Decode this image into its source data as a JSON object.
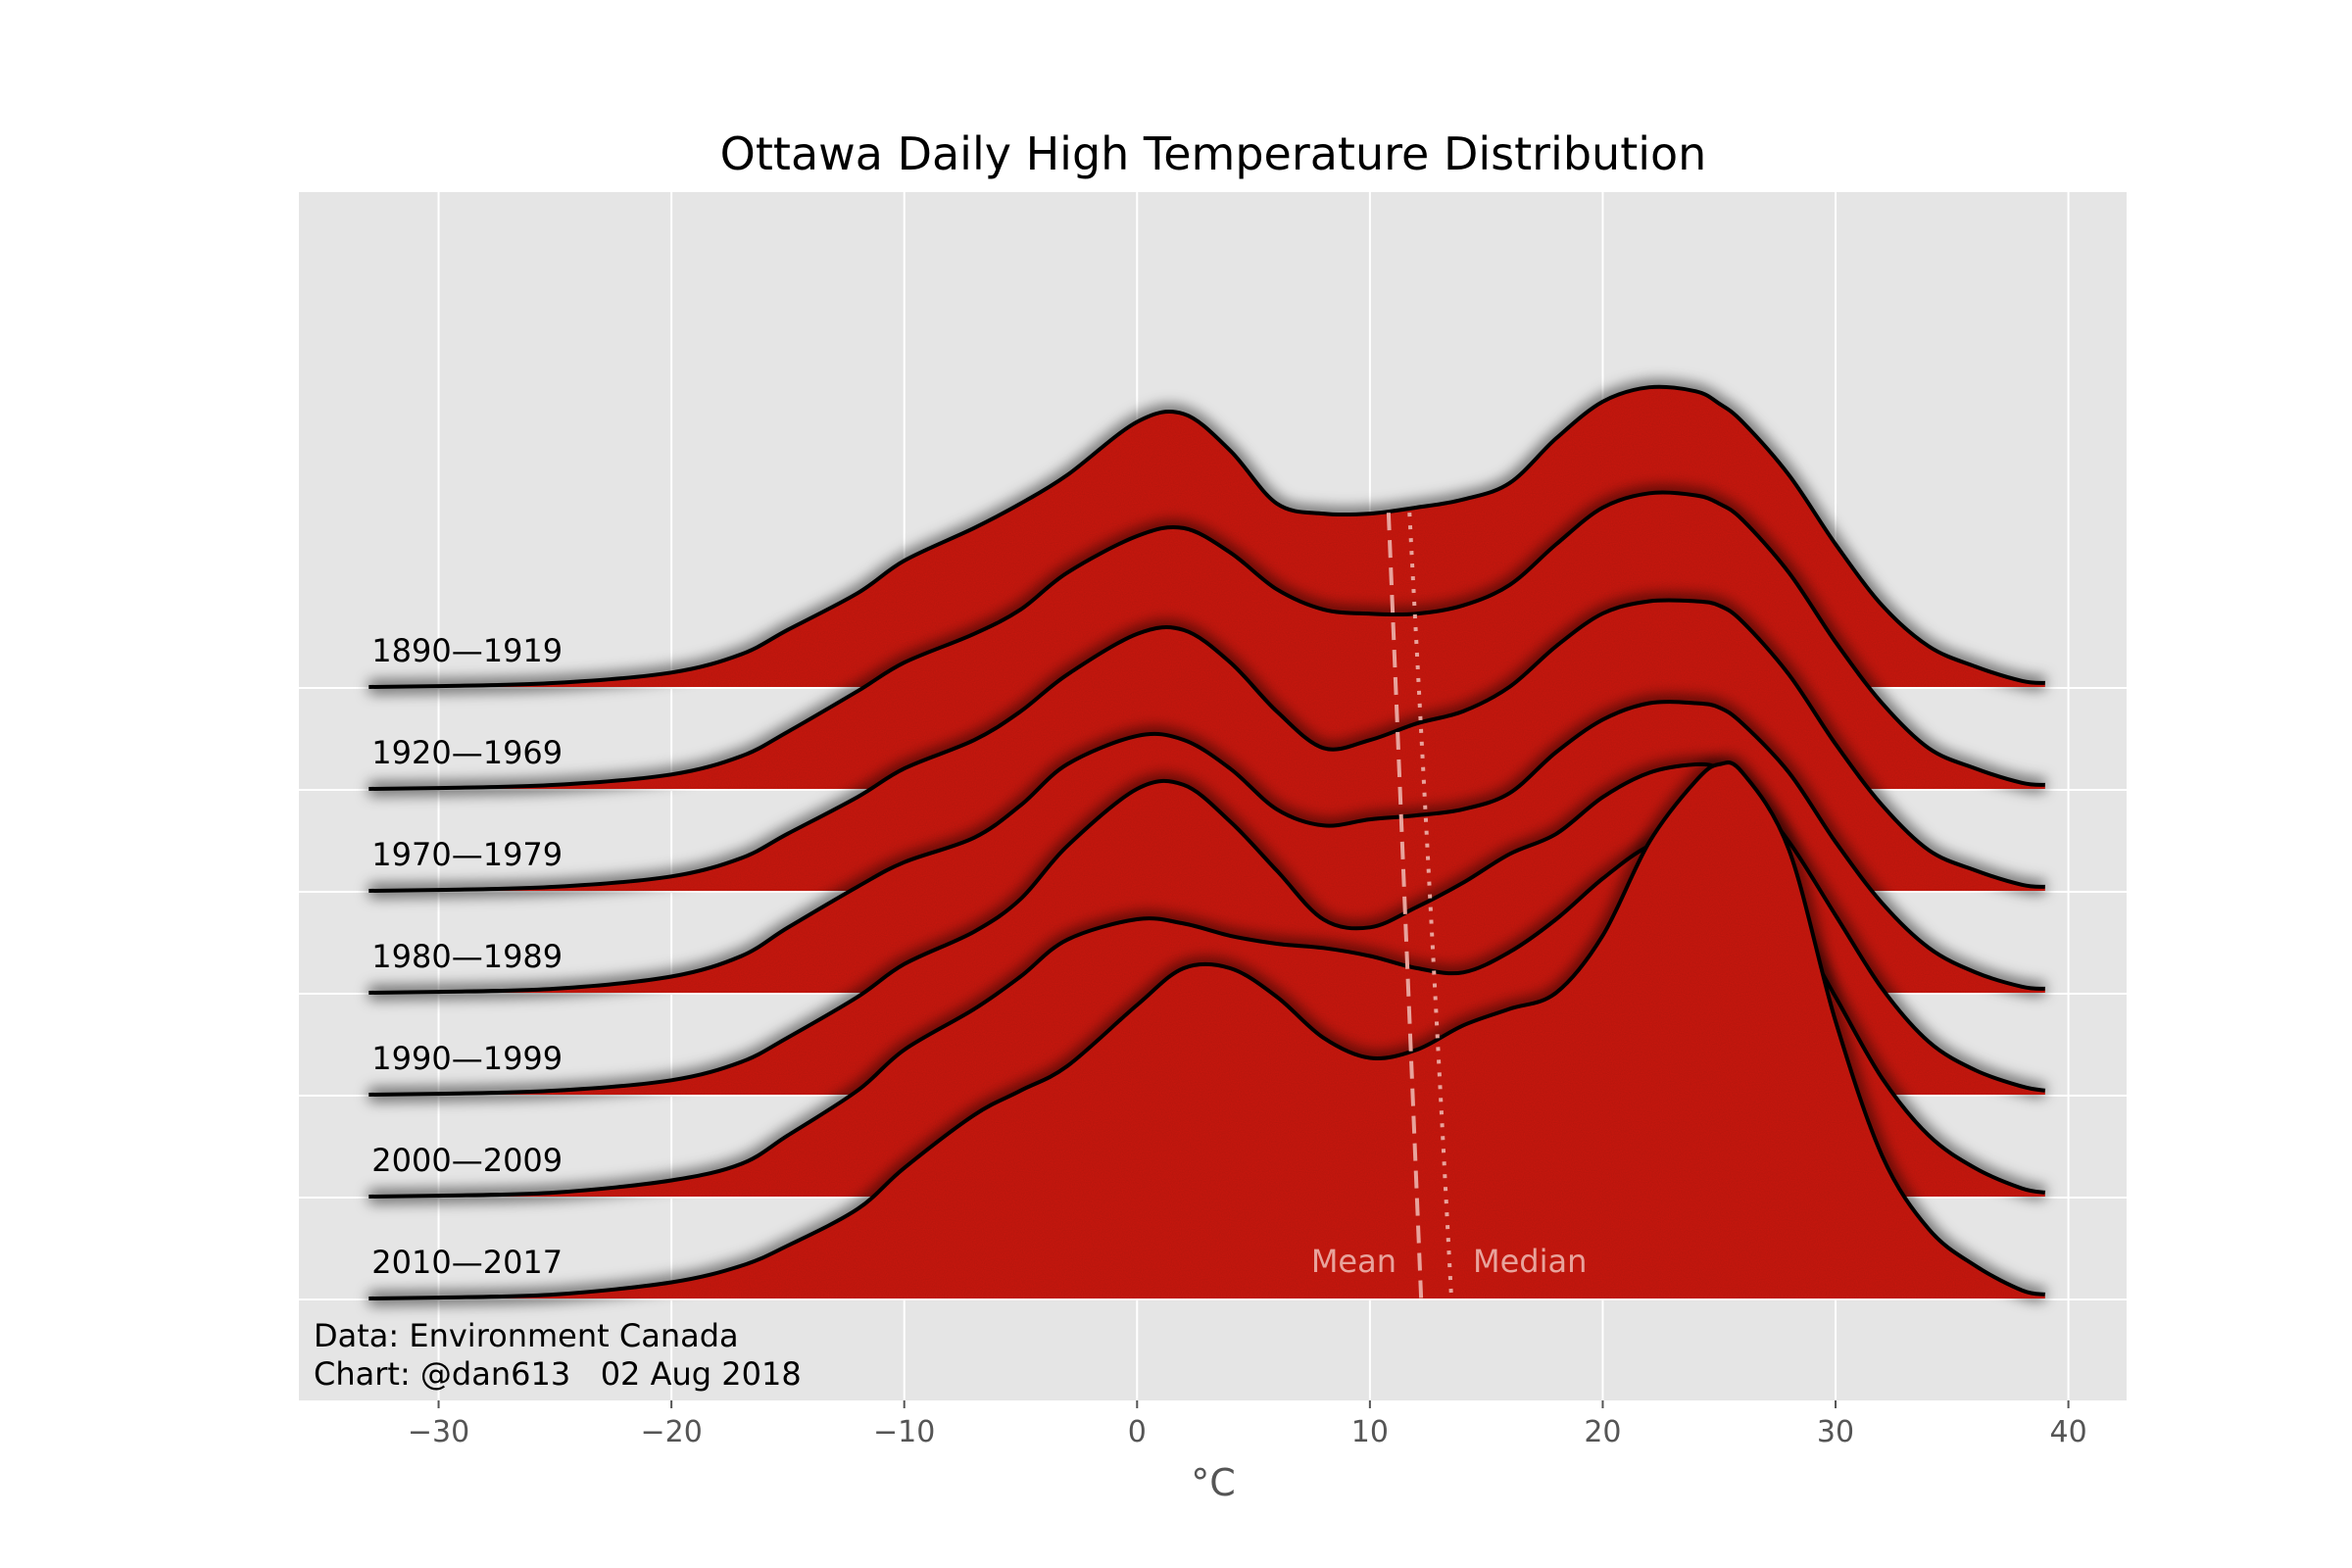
{
  "chart_data": {
    "type": "ridgeline",
    "title": "Ottawa Daily High Temperature Distribution",
    "xlabel": "°C",
    "ylabel": "",
    "xlim": [
      -36,
      42.5
    ],
    "x_ticks": [
      -30,
      -20,
      -10,
      0,
      10,
      20,
      30,
      40
    ],
    "x_tick_labels": [
      "−30",
      "−20",
      "−10",
      "0",
      "10",
      "20",
      "30",
      "40"
    ],
    "grid": true,
    "fill_color": "#cc1f15",
    "line_color": "#000000",
    "background_color": "#e5e5e5",
    "x": [
      -33,
      -30,
      -25,
      -20,
      -17,
      -15,
      -12,
      -10,
      -7,
      -5,
      -3,
      0,
      2,
      4,
      6,
      8,
      10,
      12,
      14,
      16,
      18,
      20,
      22,
      24,
      25,
      26,
      28,
      30,
      32,
      34,
      36,
      38,
      39
    ],
    "series": [
      {
        "name": "1890—1919",
        "values": [
          0.0,
          0.003,
          0.013,
          0.047,
          0.107,
          0.187,
          0.307,
          0.413,
          0.52,
          0.6,
          0.693,
          0.867,
          0.893,
          0.773,
          0.6,
          0.567,
          0.567,
          0.587,
          0.613,
          0.667,
          0.813,
          0.933,
          0.98,
          0.967,
          0.927,
          0.867,
          0.693,
          0.467,
          0.267,
          0.133,
          0.067,
          0.02,
          0.013
        ]
      },
      {
        "name": "1920—1969",
        "values": [
          0.0,
          0.003,
          0.013,
          0.047,
          0.107,
          0.187,
          0.32,
          0.413,
          0.507,
          0.587,
          0.707,
          0.827,
          0.853,
          0.773,
          0.653,
          0.587,
          0.573,
          0.573,
          0.6,
          0.667,
          0.8,
          0.92,
          0.967,
          0.96,
          0.933,
          0.88,
          0.707,
          0.48,
          0.28,
          0.133,
          0.067,
          0.02,
          0.013
        ]
      },
      {
        "name": "1970—1979",
        "values": [
          0.0,
          0.003,
          0.013,
          0.047,
          0.107,
          0.187,
          0.307,
          0.4,
          0.493,
          0.587,
          0.707,
          0.84,
          0.853,
          0.747,
          0.587,
          0.467,
          0.493,
          0.547,
          0.587,
          0.667,
          0.8,
          0.907,
          0.947,
          0.947,
          0.933,
          0.88,
          0.707,
          0.48,
          0.28,
          0.133,
          0.067,
          0.02,
          0.013
        ]
      },
      {
        "name": "1980—1989",
        "values": [
          0.0,
          0.003,
          0.013,
          0.053,
          0.12,
          0.213,
          0.347,
          0.427,
          0.507,
          0.613,
          0.747,
          0.84,
          0.827,
          0.733,
          0.6,
          0.547,
          0.567,
          0.58,
          0.6,
          0.653,
          0.787,
          0.893,
          0.947,
          0.947,
          0.933,
          0.88,
          0.72,
          0.493,
          0.293,
          0.147,
          0.067,
          0.02,
          0.013
        ]
      },
      {
        "name": "1990—1999",
        "values": [
          0.0,
          0.003,
          0.013,
          0.047,
          0.107,
          0.187,
          0.32,
          0.427,
          0.533,
          0.64,
          0.813,
          1.0,
          1.013,
          0.893,
          0.733,
          0.573,
          0.547,
          0.613,
          0.693,
          0.787,
          0.853,
          0.973,
          1.053,
          1.08,
          1.067,
          1.013,
          0.827,
          0.587,
          0.347,
          0.173,
          0.08,
          0.027,
          0.013
        ]
      },
      {
        "name": "2000—2009",
        "values": [
          0.0,
          0.003,
          0.013,
          0.053,
          0.107,
          0.2,
          0.347,
          0.48,
          0.613,
          0.72,
          0.84,
          0.907,
          0.893,
          0.853,
          0.827,
          0.813,
          0.787,
          0.747,
          0.733,
          0.8,
          0.907,
          1.04,
          1.147,
          1.187,
          1.173,
          1.12,
          0.92,
          0.653,
          0.387,
          0.2,
          0.093,
          0.027,
          0.013
        ]
      },
      {
        "name": "2010—2017",
        "values": [
          0.0,
          0.003,
          0.013,
          0.053,
          0.107,
          0.173,
          0.293,
          0.427,
          0.6,
          0.68,
          0.76,
          0.96,
          1.08,
          1.08,
          0.987,
          0.853,
          0.787,
          0.813,
          0.893,
          0.947,
          1.0,
          1.187,
          1.493,
          1.693,
          1.747,
          1.72,
          1.467,
          0.907,
          0.467,
          0.227,
          0.107,
          0.027,
          0.013
        ]
      }
    ],
    "reference_lines": [
      {
        "label": "Mean",
        "style": "dashed",
        "x_top": 10.8,
        "x_bottom": 12.2
      },
      {
        "label": "Median",
        "style": "dotted",
        "x_top": 11.7,
        "x_bottom": 13.5
      }
    ],
    "footnote_lines": [
      "Data: Environment Canada",
      "Chart: @dan613   02 Aug 2018"
    ]
  }
}
